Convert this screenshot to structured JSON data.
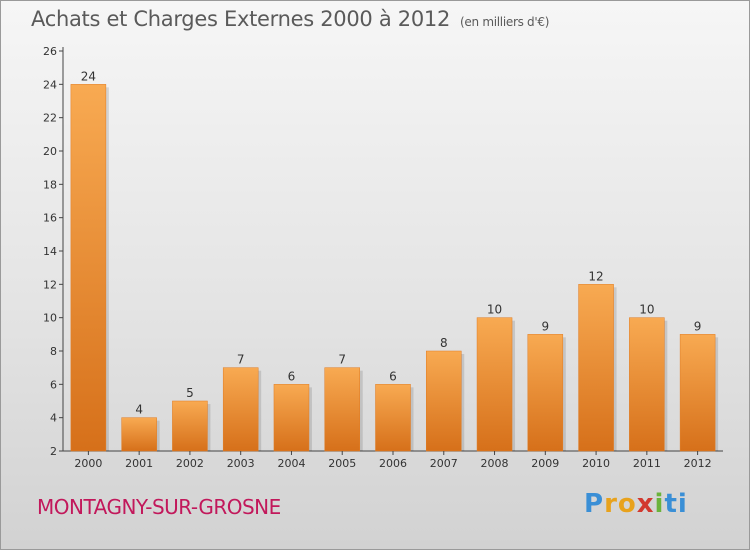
{
  "title": "Achats et Charges Externes 2000 à 2012",
  "subtitle": "(en milliers d'€)",
  "location": "MONTAGNY-SUR-GROSNE",
  "logo": {
    "text": "Proxiti"
  },
  "colors": {
    "bar_light": "#f7a54d",
    "bar_dark": "#d9731b",
    "location": "#c2185b",
    "axis": "#444444"
  },
  "chart_data": {
    "type": "bar",
    "title": "Achats et Charges Externes 2000 à 2012",
    "subtitle": "(en milliers d'€)",
    "xlabel": "",
    "ylabel": "",
    "categories": [
      "2000",
      "2001",
      "2002",
      "2003",
      "2004",
      "2005",
      "2006",
      "2007",
      "2008",
      "2009",
      "2010",
      "2011",
      "2012"
    ],
    "values": [
      24,
      4,
      5,
      7,
      6,
      7,
      6,
      8,
      10,
      9,
      12,
      10,
      9
    ],
    "ylim": [
      2,
      26
    ],
    "yticks": [
      2,
      4,
      6,
      8,
      10,
      12,
      14,
      16,
      18,
      20,
      22,
      24,
      26
    ],
    "grid": false,
    "legend": "none"
  }
}
